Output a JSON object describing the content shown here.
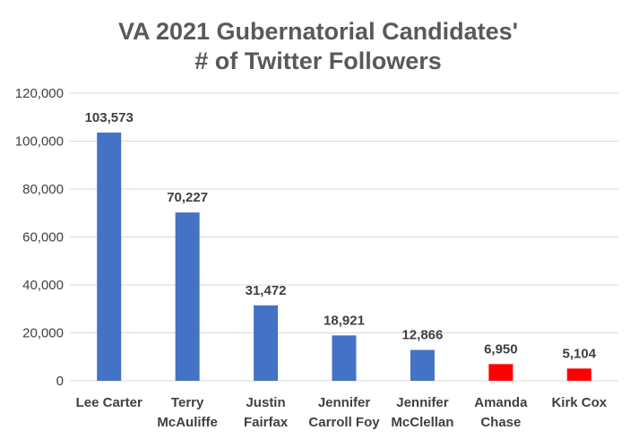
{
  "chart_data": {
    "type": "bar",
    "title_lines": [
      "VA 2021 Gubernatorial Candidates'",
      "# of Twitter Followers"
    ],
    "categories": [
      [
        "Lee Carter"
      ],
      [
        "Terry",
        "McAuliffe"
      ],
      [
        "Justin",
        "Fairfax"
      ],
      [
        "Jennifer",
        "Carroll Foy"
      ],
      [
        "Jennifer",
        "McClellan"
      ],
      [
        "Amanda",
        "Chase"
      ],
      [
        "Kirk Cox"
      ]
    ],
    "values": [
      103573,
      70227,
      31472,
      18921,
      12866,
      6950,
      5104
    ],
    "data_labels": [
      "103,573",
      "70,227",
      "31,472",
      "18,921",
      "12,866",
      "6,950",
      "5,104"
    ],
    "bar_colors": [
      "#4472c4",
      "#4472c4",
      "#4472c4",
      "#4472c4",
      "#4472c4",
      "#ff0000",
      "#ff0000"
    ],
    "ylim": [
      0,
      120000
    ],
    "yticks": [
      0,
      20000,
      40000,
      60000,
      80000,
      100000,
      120000
    ],
    "ytick_labels": [
      "0",
      "20,000",
      "40,000",
      "60,000",
      "80,000",
      "100,000",
      "120,000"
    ],
    "grid": true,
    "legend": "none"
  }
}
